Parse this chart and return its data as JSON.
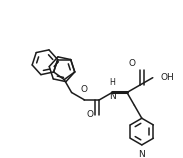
{
  "bg_color": "#ffffff",
  "line_color": "#1c1c1c",
  "line_width": 1.1,
  "font_size": 6.5,
  "fig_width": 1.83,
  "fig_height": 1.58,
  "dpi": 100,
  "xlim": [
    0,
    183
  ],
  "ylim": [
    0,
    158
  ]
}
